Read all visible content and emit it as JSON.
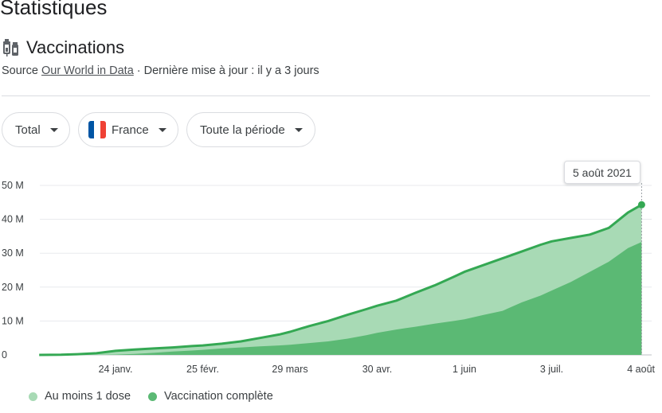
{
  "page": {
    "title": "Statistiques"
  },
  "section": {
    "title": "Vaccinations",
    "icon": "vaccine-icon"
  },
  "source": {
    "prefix": "Source ",
    "link_text": "Our World in Data",
    "suffix": " · Dernière mise à jour : il y a 3 jours"
  },
  "filters": {
    "metric": {
      "label": "Total"
    },
    "country": {
      "label": "France",
      "icon": "france-flag-icon"
    },
    "period": {
      "label": "Toute la période"
    }
  },
  "colors": {
    "dose1_fill": "#a8dab5",
    "full_fill": "#5bb974",
    "line": "#34a853",
    "grid": "#e8eaed"
  },
  "tooltip": {
    "label": "5 août 2021"
  },
  "legend": {
    "items": [
      {
        "label": "Au moins 1 dose",
        "color": "#a8dab5"
      },
      {
        "label": "Vaccination complète",
        "color": "#5bb974"
      }
    ]
  },
  "chart_data": {
    "type": "area",
    "title": "",
    "xlabel": "",
    "ylabel": "",
    "y_ticks": [
      0,
      10,
      20,
      30,
      40,
      50
    ],
    "y_tick_labels": [
      "0",
      "10 M",
      "20 M",
      "30 M",
      "40 M",
      "50 M"
    ],
    "ylim": [
      0,
      50
    ],
    "y_unit": "M",
    "x_range": [
      "2020-12-27",
      "2021-08-05"
    ],
    "x_ticks": [
      {
        "date": "2021-01-24",
        "label": "24 janv."
      },
      {
        "date": "2021-02-25",
        "label": "25 févr."
      },
      {
        "date": "2021-03-29",
        "label": "29 mars"
      },
      {
        "date": "2021-04-30",
        "label": "30 avr."
      },
      {
        "date": "2021-06-01",
        "label": "1 juin"
      },
      {
        "date": "2021-07-03",
        "label": "3 juil."
      },
      {
        "date": "2021-08-04",
        "label": "4 août"
      }
    ],
    "grid": true,
    "legend_position": "bottom-left",
    "highlight": {
      "date": "2021-08-05",
      "series": "Au moins 1 dose",
      "value": 44.3
    },
    "series": [
      {
        "name": "Au moins 1 dose",
        "points": [
          [
            "2020-12-27",
            0.0
          ],
          [
            "2021-01-04",
            0.05
          ],
          [
            "2021-01-10",
            0.2
          ],
          [
            "2021-01-17",
            0.5
          ],
          [
            "2021-01-24",
            1.2
          ],
          [
            "2021-01-31",
            1.6
          ],
          [
            "2021-02-07",
            1.9
          ],
          [
            "2021-02-14",
            2.2
          ],
          [
            "2021-02-21",
            2.6
          ],
          [
            "2021-02-25",
            2.8
          ],
          [
            "2021-03-04",
            3.3
          ],
          [
            "2021-03-11",
            4.0
          ],
          [
            "2021-03-18",
            5.0
          ],
          [
            "2021-03-25",
            6.0
          ],
          [
            "2021-03-29",
            6.8
          ],
          [
            "2021-04-05",
            8.5
          ],
          [
            "2021-04-12",
            10.0
          ],
          [
            "2021-04-19",
            11.8
          ],
          [
            "2021-04-26",
            13.5
          ],
          [
            "2021-04-30",
            14.5
          ],
          [
            "2021-05-07",
            16.0
          ],
          [
            "2021-05-14",
            18.3
          ],
          [
            "2021-05-21",
            20.5
          ],
          [
            "2021-05-28",
            23.0
          ],
          [
            "2021-06-01",
            24.5
          ],
          [
            "2021-06-08",
            26.5
          ],
          [
            "2021-06-15",
            28.5
          ],
          [
            "2021-06-22",
            30.5
          ],
          [
            "2021-06-29",
            32.5
          ],
          [
            "2021-07-03",
            33.5
          ],
          [
            "2021-07-10",
            34.5
          ],
          [
            "2021-07-17",
            35.5
          ],
          [
            "2021-07-24",
            37.5
          ],
          [
            "2021-07-31",
            42.0
          ],
          [
            "2021-08-05",
            44.3
          ]
        ]
      },
      {
        "name": "Vaccination complète",
        "points": [
          [
            "2020-12-27",
            0.0
          ],
          [
            "2021-01-17",
            0.0
          ],
          [
            "2021-01-24",
            0.1
          ],
          [
            "2021-01-31",
            0.3
          ],
          [
            "2021-02-07",
            0.6
          ],
          [
            "2021-02-14",
            1.0
          ],
          [
            "2021-02-21",
            1.3
          ],
          [
            "2021-02-25",
            1.5
          ],
          [
            "2021-03-04",
            1.9
          ],
          [
            "2021-03-11",
            2.2
          ],
          [
            "2021-03-18",
            2.5
          ],
          [
            "2021-03-25",
            2.8
          ],
          [
            "2021-03-29",
            3.0
          ],
          [
            "2021-04-05",
            3.5
          ],
          [
            "2021-04-12",
            4.0
          ],
          [
            "2021-04-19",
            4.8
          ],
          [
            "2021-04-26",
            5.8
          ],
          [
            "2021-04-30",
            6.5
          ],
          [
            "2021-05-07",
            7.5
          ],
          [
            "2021-05-14",
            8.3
          ],
          [
            "2021-05-21",
            9.2
          ],
          [
            "2021-05-28",
            10.0
          ],
          [
            "2021-06-01",
            10.5
          ],
          [
            "2021-06-08",
            11.8
          ],
          [
            "2021-06-15",
            13.0
          ],
          [
            "2021-06-22",
            15.5
          ],
          [
            "2021-06-29",
            17.5
          ],
          [
            "2021-07-03",
            19.0
          ],
          [
            "2021-07-10",
            21.5
          ],
          [
            "2021-07-17",
            24.5
          ],
          [
            "2021-07-24",
            27.5
          ],
          [
            "2021-07-31",
            31.5
          ],
          [
            "2021-08-05",
            33.3
          ]
        ]
      }
    ]
  }
}
